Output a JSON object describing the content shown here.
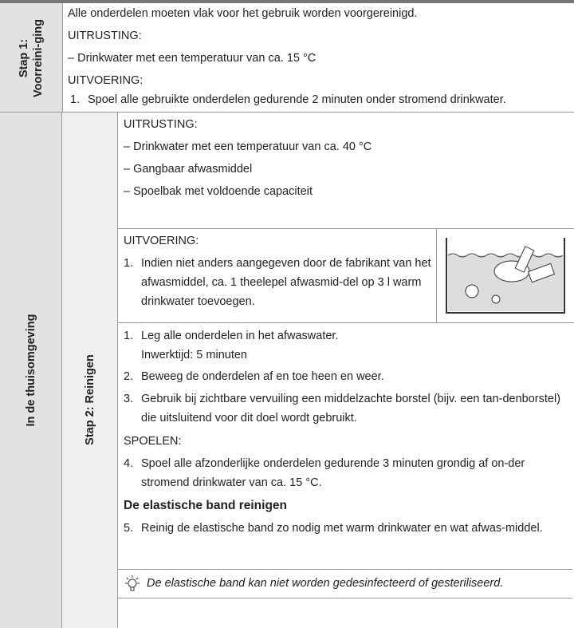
{
  "step1": {
    "section_label": "Stap 1: Voorreini-ging",
    "intro": "Alle onderdelen moeten vlak voor het gebruik worden voorgereinigd.",
    "equipment_heading": "UITRUSTING:",
    "equipment": [
      "– Drinkwater met een temperatuur van ca. 15 °C"
    ],
    "execution_heading": "UITVOERING:",
    "steps": [
      {
        "number": "1.",
        "text": "Spoel alle gebruikte onderdelen gedurende 2 minuten onder stromend drinkwater."
      }
    ]
  },
  "environment_label": "In de thuisomgeving",
  "step2": {
    "section_label": "Stap 2: Reinigen",
    "equipment_heading": "UITRUSTING:",
    "equipment": [
      "– Drinkwater met een temperatuur van ca. 40 °C",
      "– Gangbaar afwasmiddel",
      "– Spoelbak met voldoende capaciteit"
    ],
    "execution_heading": "UITVOERING:",
    "prep_step": {
      "number": "1.",
      "text": "Indien niet anders aangegeven door de fabrikant van het afwasmiddel, ca. 1 theelepel afwasmid-del op 3 l warm drinkwater toevoegen."
    },
    "steps": [
      {
        "number": "1.",
        "text": "Leg alle onderdelen in het afwaswater.",
        "sub": "Inwerktijd: 5 minuten"
      },
      {
        "number": "2.",
        "text": "Beweeg de onderdelen af en toe heen en weer."
      },
      {
        "number": "3.",
        "text": "Gebruik bij zichtbare vervuiling een middelzachte borstel (bijv. een tan-denborstel) die uitsluitend voor dit doel wordt gebruikt."
      }
    ],
    "rinse_heading": "SPOELEN:",
    "rinse_step": {
      "number": "4.",
      "text": "Spoel alle afzonderlijke onderdelen gedurende 3 minuten grondig af on-der stromend drinkwater van ca. 15 °C."
    },
    "band_heading": "De elastische band reinigen",
    "band_step": {
      "number": "5.",
      "text": "Reinig de elastische band zo nodig met warm drinkwater en wat afwas-middel."
    },
    "note": "De elastische band kan niet worden gedesinfecteerd of gesteriliseerd."
  }
}
